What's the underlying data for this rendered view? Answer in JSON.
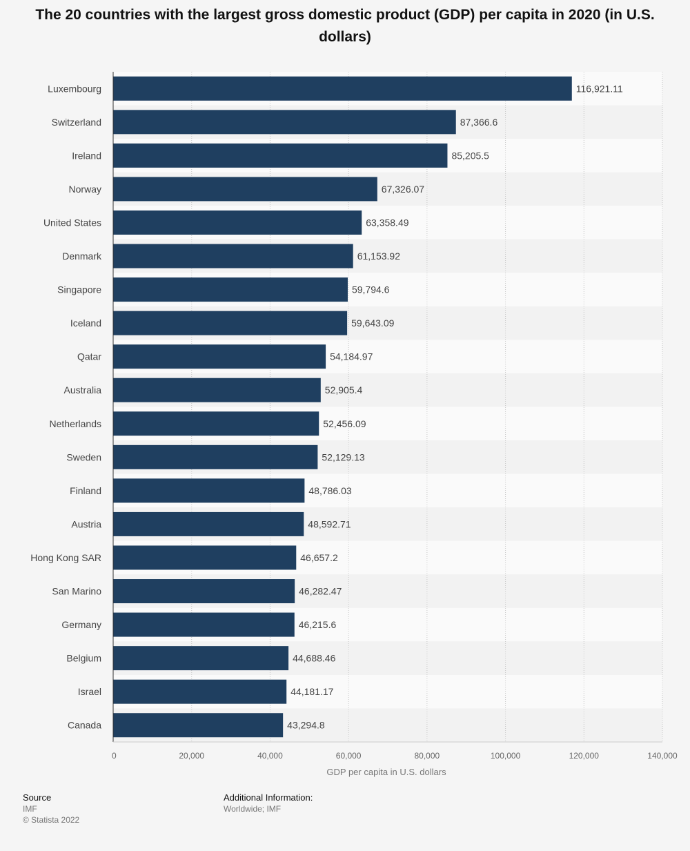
{
  "title": "The 20 countries with the largest gross domestic product (GDP) per capita in 2020 (in U.S. dollars)",
  "chart_data": {
    "type": "bar",
    "orientation": "horizontal",
    "title": "The 20 countries with the largest gross domestic product (GDP) per capita in 2020 (in U.S. dollars)",
    "xlabel": "GDP per capita in U.S. dollars",
    "ylabel": "",
    "xlim": [
      0,
      140000
    ],
    "ticks": [
      0,
      20000,
      40000,
      60000,
      80000,
      100000,
      120000,
      140000
    ],
    "tick_labels": [
      "0",
      "20,000",
      "40,000",
      "60,000",
      "80,000",
      "100,000",
      "120,000",
      "140,000"
    ],
    "grid": true,
    "bar_color": "#1f3f60",
    "categories": [
      "Luxembourg",
      "Switzerland",
      "Ireland",
      "Norway",
      "United States",
      "Denmark",
      "Singapore",
      "Iceland",
      "Qatar",
      "Australia",
      "Netherlands",
      "Sweden",
      "Finland",
      "Austria",
      "Hong Kong SAR",
      "San Marino",
      "Germany",
      "Belgium",
      "Israel",
      "Canada"
    ],
    "values": [
      116921.11,
      87366.6,
      85205.5,
      67326.07,
      63358.49,
      61153.92,
      59794.6,
      59643.09,
      54184.97,
      52905.4,
      52456.09,
      52129.13,
      48786.03,
      48592.71,
      46657.2,
      46282.47,
      46215.6,
      44688.46,
      44181.17,
      43294.8
    ],
    "value_labels": [
      "116,921.11",
      "87,366.6",
      "85,205.5",
      "67,326.07",
      "63,358.49",
      "61,153.92",
      "59,794.6",
      "59,643.09",
      "54,184.97",
      "52,905.4",
      "52,456.09",
      "52,129.13",
      "48,786.03",
      "48,592.71",
      "46,657.2",
      "46,282.47",
      "46,215.6",
      "44,688.46",
      "44,181.17",
      "43,294.8"
    ]
  },
  "footer": {
    "source_heading": "Source",
    "source_lines": [
      "IMF",
      "© Statista 2022"
    ],
    "info_heading": "Additional Information:",
    "info_text": "Worldwide; IMF"
  }
}
